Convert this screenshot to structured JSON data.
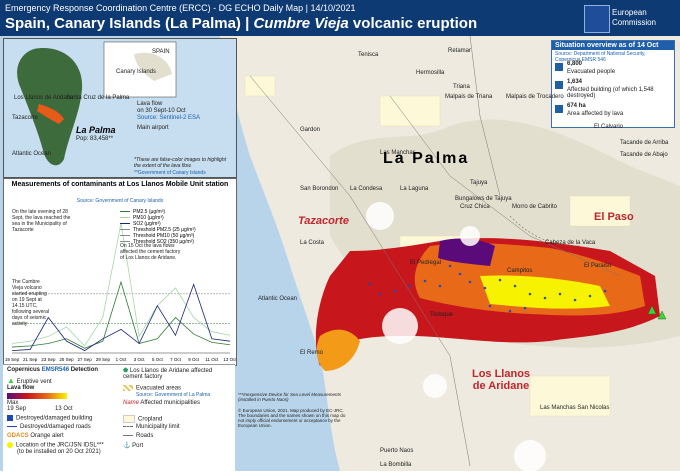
{
  "header": {
    "line1": "Emergency Response Coordination Centre (ERCC) - DG ECHO Daily Map | 14/10/2021",
    "title_a": "Spain, Canary Islands (La Palma) | ",
    "title_b": "Cumbre Vieja",
    "title_c": " volcanic eruption",
    "ec_line1": "European",
    "ec_line2": "Commission"
  },
  "inset": {
    "island": "La Palma",
    "pop": "Pop: 83,458**",
    "ocean": "Atlantic Ocean",
    "llanos": "Los Llanos de Aridane",
    "tazacorte": "Tazacorte",
    "santacruz": "Santa Cruz de la Palma",
    "islands": "Canary Islands",
    "spain": "SPAIN",
    "legend_lava": "Lava flow",
    "legend_lava2": "on 30 Sept-10 Oct",
    "legend_source": "Source: Sentinel-2 ESA",
    "legend_airport": "Main airport",
    "note": "*These are false-color images to highlight the extent of the lava flow.",
    "note_src": "**Government of Canary Islands"
  },
  "situation": {
    "title": "Situation overview as of 14 Oct",
    "source": "Source: Department of National Security, Copernicus EMSR 546",
    "evac_num": "6,800",
    "evac_lbl": "Evacuated people",
    "build_num": "1,634",
    "build_lbl": "Affected building (of which 1,548 destroyed)",
    "area_num": "674 ha",
    "area_lbl": "Area affected by lava"
  },
  "places": [
    "Los Llanos de Aridane",
    "Tenisca",
    "Retamar",
    "Hermosilla",
    "Triana",
    "Malpais de Triana",
    "Malpais de Trocadero",
    "Tazacorte",
    "Gardon",
    "La Laguna",
    "San Borondon",
    "La Condesa",
    "Las Manchas",
    "Tajuya",
    "Bungalows de Tajuya",
    "Cruz Chica",
    "Morro de Cabrito",
    "El Paso",
    "La Costa",
    "El Paraiso",
    "El Pedregal",
    "Campitos",
    "Cabeza de la Vaca",
    "Todoque",
    "El Calvario",
    "Tacande de Arriba",
    "Tacande de Abajo",
    "Las Manchas San Nicolas",
    "Puerto Naos",
    "La Bombilla",
    "Atlantic Ocean",
    "El Remo"
  ],
  "big_labels": {
    "island": "La Palma",
    "tazacorte": "Tazacorte",
    "elpaso": "El Paso",
    "llanos": "Los Llanos de Aridane"
  },
  "chart_data": {
    "type": "line",
    "title": "Measurements of contaminants at Los Llanos Mobile Unit station",
    "source": "Source: Government of Canary Islands",
    "categories": [
      "19 Sep",
      "21 Sep",
      "23 Sep",
      "25 Sep",
      "27 Sep",
      "29 Sep",
      "1 Oct",
      "3 Oct",
      "5 Oct",
      "7 Oct",
      "9 Oct",
      "11 Oct",
      "13 Oct"
    ],
    "series": [
      {
        "name": "PM2.5 (µg/m³)",
        "color": "#2e7d32",
        "values": [
          5,
          6,
          8,
          12,
          4,
          10,
          60,
          8,
          12,
          30,
          16,
          9,
          7
        ]
      },
      {
        "name": "PM10 (µg/m³)",
        "color": "#a5d6a7",
        "values": [
          8,
          10,
          14,
          22,
          6,
          30,
          110,
          14,
          40,
          55,
          30,
          18,
          15
        ]
      },
      {
        "name": "SO2 (µg/m³)",
        "color": "#1a237e",
        "values": [
          2,
          3,
          30,
          10,
          2,
          12,
          20,
          8,
          40,
          15,
          58,
          12,
          10
        ]
      }
    ],
    "thresholds": [
      {
        "name": "Threshold PM2.5 (25 µg/m³)",
        "value": 25
      },
      {
        "name": "Threshold PM10 (50 µg/m³)",
        "value": 50
      },
      {
        "name": "Threshold SO2 (350 µg/m³)",
        "value": 350
      }
    ],
    "annotations": [
      "On the late evening of 28 Sept, the lava reached the sea in the Municipality of Tazacorte",
      "On 15 Oct the lava flows affected the cement factory of Los Llanos de Aridane.",
      "The Cumbre Vieja volcano started erupting on 19 Sept at 14.15 UTC, following several days of seismic activity"
    ],
    "ylim": [
      0,
      120
    ]
  },
  "legend": {
    "copernicus": "Copernicus",
    "emsr": "EMSR546",
    "detection": "Detection",
    "vent": "Eruptive vent",
    "cement": "Los Llanos de Aridane affected cement factory",
    "lava_flow": "Lava flow",
    "max": "Max",
    "date_a": "19 Sep",
    "date_b": "13 Oct",
    "evac": "Evacuated areas",
    "evac_src": "Source: Government of La Palma",
    "muni": "Affected municipalities",
    "muni_name": "Name",
    "destroyed_b": "Destroyed/damaged building",
    "destroyed_r": "Destroyed/damaged roads",
    "gdacs": "GDACS",
    "gdacs_lbl": "Orange alert",
    "jrc": "Location of the JRC/JSN IDSL***",
    "jrc2": "(to be installed on 20 Oct 2021)",
    "cropland": "Cropland",
    "munilimit": "Municipality limit",
    "roads": "Roads",
    "port": "Port",
    "footer": "© European Union, 2021. Map produced by EC-JRC. The boundaries and the names shown on this map do not imply official endorsement or acceptance by the European Union.",
    "footer2": "***Inexpensive Device for Sea Level Measurements (installed in Puerto Naos)"
  },
  "colors": {
    "header": "#0e3a73",
    "lava_max": "#5b0a7a",
    "lava_min": "#f7f300",
    "sea": "#b8d4ea",
    "land": "#f2efe6"
  }
}
